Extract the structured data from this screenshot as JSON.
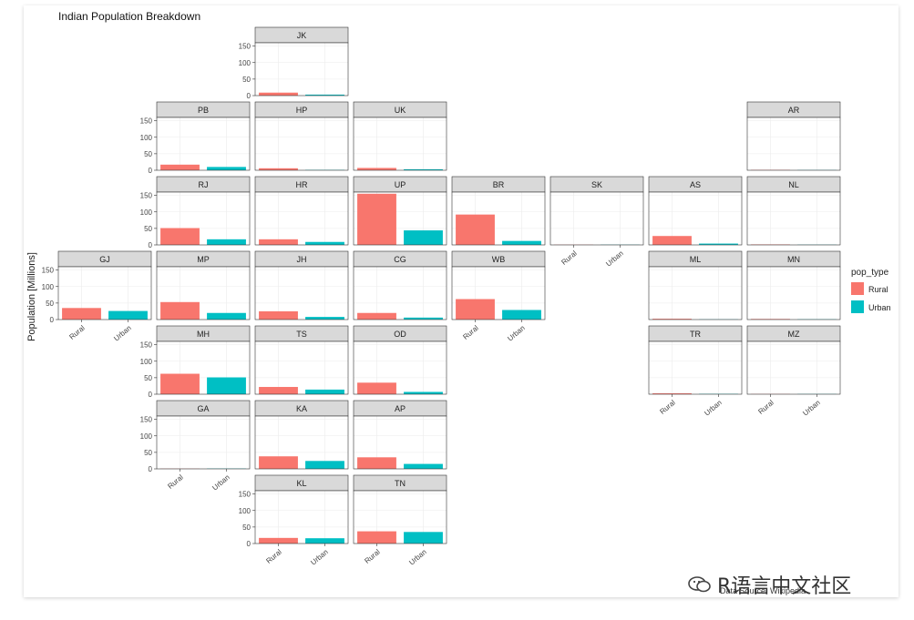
{
  "chart_data": {
    "type": "bar",
    "title": "Indian Population Breakdown",
    "ylabel": "Population [Millions]",
    "caption": "Data Source: Wikipedia",
    "categories": [
      "Rural",
      "Urban"
    ],
    "ylim": [
      0,
      160
    ],
    "yticks": [
      0,
      50,
      100,
      150
    ],
    "legend": {
      "title": "pop_type",
      "placement": "right",
      "entries": [
        "Rural",
        "Urban"
      ]
    },
    "colors": {
      "Rural": "#F8766D",
      "Urban": "#00BFC4",
      "strip": "#D9D9D9",
      "grid": "#EBEBEB"
    },
    "grid": true,
    "panels": [
      {
        "name": "JK",
        "values": [
          9,
          3
        ]
      },
      {
        "name": "PB",
        "values": [
          17,
          10
        ]
      },
      {
        "name": "HP",
        "values": [
          6,
          1
        ]
      },
      {
        "name": "UK",
        "values": [
          7,
          3
        ]
      },
      {
        "name": "AR",
        "values": [
          1,
          0.3
        ]
      },
      {
        "name": "RJ",
        "values": [
          51,
          17
        ]
      },
      {
        "name": "HR",
        "values": [
          17,
          9
        ]
      },
      {
        "name": "UP",
        "values": [
          155,
          44
        ]
      },
      {
        "name": "BR",
        "values": [
          92,
          12
        ]
      },
      {
        "name": "SK",
        "values": [
          0.5,
          0.2
        ]
      },
      {
        "name": "AS",
        "values": [
          27,
          4
        ]
      },
      {
        "name": "NL",
        "values": [
          1.4,
          0.6
        ]
      },
      {
        "name": "GJ",
        "values": [
          35,
          26
        ]
      },
      {
        "name": "MP",
        "values": [
          53,
          20
        ]
      },
      {
        "name": "JH",
        "values": [
          25,
          8
        ]
      },
      {
        "name": "CG",
        "values": [
          20,
          6
        ]
      },
      {
        "name": "WB",
        "values": [
          62,
          29
        ]
      },
      {
        "name": "ML",
        "values": [
          2.4,
          0.6
        ]
      },
      {
        "name": "MN",
        "values": [
          1.8,
          0.8
        ]
      },
      {
        "name": "MH",
        "values": [
          62,
          51
        ]
      },
      {
        "name": "TS",
        "values": [
          22,
          14
        ]
      },
      {
        "name": "OD",
        "values": [
          35,
          7
        ]
      },
      {
        "name": "TR",
        "values": [
          2.7,
          1
        ]
      },
      {
        "name": "MZ",
        "values": [
          0.5,
          0.6
        ]
      },
      {
        "name": "GA",
        "values": [
          0.6,
          0.9
        ]
      },
      {
        "name": "KA",
        "values": [
          38,
          24
        ]
      },
      {
        "name": "AP",
        "values": [
          35,
          15
        ]
      },
      {
        "name": "KL",
        "values": [
          17,
          16
        ]
      },
      {
        "name": "TN",
        "values": [
          37,
          35
        ]
      }
    ]
  },
  "watermark": {
    "text": "R语言中文社区"
  }
}
